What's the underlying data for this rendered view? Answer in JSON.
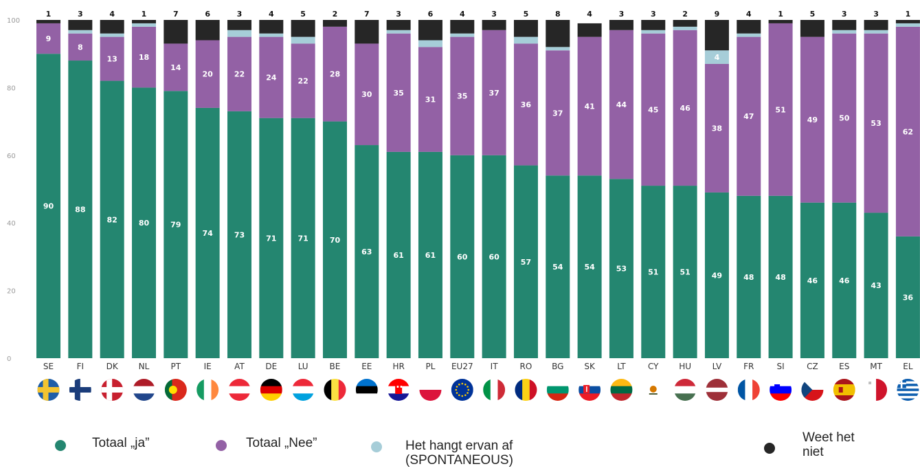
{
  "chart_data": {
    "type": "bar",
    "stacked": true,
    "ylim": [
      0,
      100
    ],
    "yticks": [
      0,
      20,
      40,
      60,
      80,
      100
    ],
    "grid": false,
    "legend_position": "bottom",
    "categories": [
      "SE",
      "FI",
      "DK",
      "NL",
      "PT",
      "IE",
      "AT",
      "DE",
      "LU",
      "BE",
      "EE",
      "HR",
      "PL",
      "EU27",
      "IT",
      "RO",
      "BG",
      "SK",
      "LT",
      "CY",
      "HU",
      "LV",
      "FR",
      "SI",
      "CZ",
      "ES",
      "MT",
      "EL"
    ],
    "series": [
      {
        "name": "Totaal „ja”",
        "color": "#248670",
        "values": [
          90,
          88,
          82,
          80,
          79,
          74,
          73,
          71,
          71,
          70,
          63,
          61,
          61,
          60,
          60,
          57,
          54,
          54,
          53,
          51,
          51,
          49,
          48,
          48,
          46,
          46,
          43,
          36
        ]
      },
      {
        "name": "Totaal „Nee”",
        "color": "#9361a5",
        "values": [
          9,
          8,
          13,
          18,
          14,
          20,
          22,
          24,
          22,
          28,
          30,
          35,
          31,
          35,
          37,
          36,
          37,
          41,
          44,
          45,
          46,
          38,
          47,
          51,
          49,
          50,
          53,
          62
        ]
      },
      {
        "name": "Het hangt ervan af (SPONTANEOUS)",
        "color": "#a6cdd8",
        "values": [
          0,
          1,
          1,
          1,
          0,
          0,
          2,
          1,
          2,
          0,
          0,
          1,
          2,
          1,
          0,
          2,
          1,
          0,
          0,
          1,
          1,
          4,
          1,
          0,
          0,
          1,
          1,
          1
        ]
      },
      {
        "name": "Weet het niet",
        "color": "#262626",
        "values": [
          1,
          3,
          4,
          1,
          7,
          6,
          3,
          4,
          5,
          2,
          7,
          3,
          6,
          4,
          3,
          5,
          8,
          4,
          3,
          3,
          2,
          9,
          4,
          1,
          5,
          3,
          3,
          1
        ]
      }
    ],
    "value_labels": {
      "series_0": [
        "90",
        "88",
        "82",
        "80",
        "79",
        "74",
        "73",
        "71",
        "71",
        "70",
        "63",
        "61",
        "61",
        "60",
        "60",
        "57",
        "54",
        "54",
        "53",
        "51",
        "51",
        "49",
        "48",
        "48",
        "46",
        "46",
        "43",
        "36"
      ],
      "series_1": [
        "9",
        "8",
        "13",
        "18",
        "14",
        "20",
        "22",
        "24",
        "22",
        "28",
        "30",
        "35",
        "31",
        "35",
        "37",
        "36",
        "37",
        "41",
        "44",
        "45",
        "46",
        "38",
        "47",
        "51",
        "49",
        "50",
        "53",
        "62"
      ],
      "series_2": [
        "",
        "",
        "",
        "",
        "",
        "",
        "",
        "",
        "",
        "",
        "",
        "",
        "",
        "",
        "",
        "",
        "",
        "",
        "",
        "",
        "",
        "4",
        "",
        "",
        "",
        "",
        "",
        ""
      ],
      "top": [
        "1",
        "3",
        "4",
        "1",
        "7",
        "6",
        "3",
        "4",
        "5",
        "2",
        "7",
        "3",
        "6",
        "4",
        "3",
        "5",
        "8",
        "4",
        "3",
        "3",
        "2",
        "9",
        "4",
        "1",
        "5",
        "3",
        "3",
        "1"
      ]
    },
    "flags": [
      "se",
      "fi",
      "dk",
      "nl",
      "pt",
      "ie",
      "at",
      "de",
      "lu",
      "be",
      "ee",
      "hr",
      "pl",
      "eu",
      "it",
      "ro",
      "bg",
      "sk",
      "lt",
      "cy",
      "hu",
      "lv",
      "fr",
      "si",
      "cz",
      "es",
      "mt",
      "gr"
    ]
  },
  "legend": [
    {
      "label": "Totaal „ja”",
      "color": "#248670"
    },
    {
      "label": "Totaal „Nee”",
      "color": "#9361a5"
    },
    {
      "label": "Het hangt ervan af\n(SPONTANEOUS)",
      "color": "#a6cdd8"
    },
    {
      "label": "Weet het\nniet",
      "color": "#262626"
    }
  ]
}
